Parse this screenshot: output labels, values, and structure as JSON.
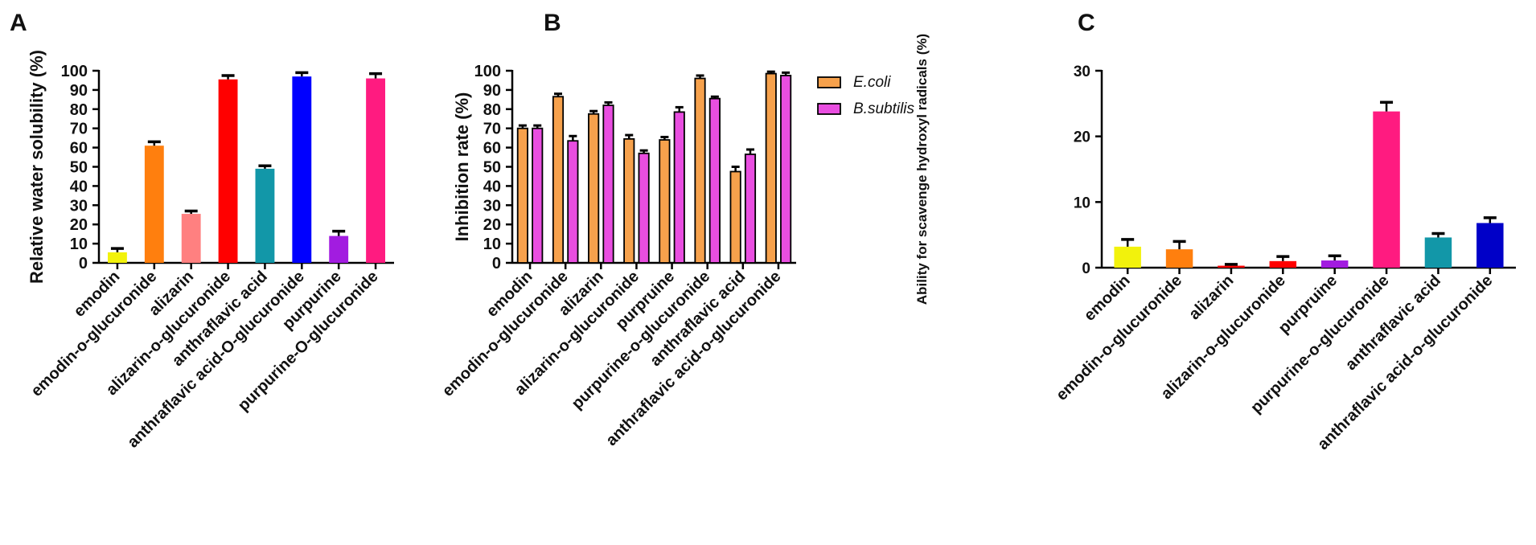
{
  "chart_data": [
    {
      "panel": "A",
      "type": "bar",
      "title": "",
      "xlabel": "",
      "ylabel": "Relative water solubility (%)",
      "ylim": [
        0,
        100
      ],
      "yticks": [
        0,
        10,
        20,
        30,
        40,
        50,
        60,
        70,
        80,
        90,
        100
      ],
      "categories": [
        "emodin",
        "emodin-o-glucuronide",
        "alizarin",
        "alizarin-o-glucuronide",
        "anthraflavic acid",
        "anthraflavic acid-O-glucuronide",
        "purpurine",
        "purpurine-O-glucuronide"
      ],
      "values": [
        5.5,
        61,
        25.5,
        95.5,
        49,
        97,
        14,
        96
      ],
      "errors": [
        2,
        2,
        1.5,
        2,
        1.5,
        2,
        2.5,
        2.5
      ],
      "colors": [
        "#f2f20c",
        "#ff7f0e",
        "#ff8080",
        "#ff0000",
        "#1297a8",
        "#0000ff",
        "#a21ce0",
        "#ff1b80"
      ]
    },
    {
      "panel": "B",
      "type": "bar",
      "title": "",
      "xlabel": "",
      "ylabel": "Inhibition rate  (%)",
      "ylim": [
        0,
        100
      ],
      "yticks": [
        0,
        10,
        20,
        30,
        40,
        50,
        60,
        70,
        80,
        90,
        100
      ],
      "categories": [
        "emodin",
        "emodin-o-glucuronide",
        "alizarin",
        "alizarin-o-glucuronide",
        "purpruine",
        "purpurine-o-glucuronide",
        "anthraflavic acid",
        "anthraflavic acid-o-glucuronide"
      ],
      "series": [
        {
          "name": "E.coli",
          "color": "#f6a14c",
          "values": [
            70,
            86.5,
            77.5,
            64.5,
            64,
            96,
            47.5,
            98.5
          ],
          "errors": [
            1.5,
            1.5,
            1.5,
            2,
            1.5,
            1.5,
            2.5,
            1
          ]
        },
        {
          "name": "B.subtilis",
          "color": "#e94ee0",
          "values": [
            70,
            63.5,
            82,
            57,
            78.5,
            85.5,
            56.5,
            97.5
          ],
          "errors": [
            1.5,
            2.5,
            1.5,
            1.5,
            2.5,
            1,
            2.5,
            1.5
          ]
        }
      ],
      "legend": "top-right"
    },
    {
      "panel": "C",
      "type": "bar",
      "title": "",
      "xlabel": "",
      "ylabel": "Ability for scavenge hydroxyl radicals (%)",
      "ylim": [
        0,
        30
      ],
      "yticks": [
        0,
        10,
        20,
        30
      ],
      "categories": [
        "emodin",
        "emodin-o-glucuronide",
        "alizarin",
        "alizarin-o-glucuronide",
        "purpruine",
        "purpurine-o-glucuronide",
        "anthraflavic acid",
        "anthraflavic acid-o-glucuronide"
      ],
      "values": [
        3.2,
        2.8,
        0.3,
        1.0,
        1.1,
        23.8,
        4.6,
        6.8
      ],
      "errors": [
        1.1,
        1.2,
        0.2,
        0.7,
        0.7,
        1.4,
        0.6,
        0.8
      ],
      "colors": [
        "#f2f20c",
        "#ff7f0e",
        "#ff0000",
        "#ff0000",
        "#a21ce0",
        "#ff1b80",
        "#1297a8",
        "#0000c8"
      ]
    }
  ]
}
